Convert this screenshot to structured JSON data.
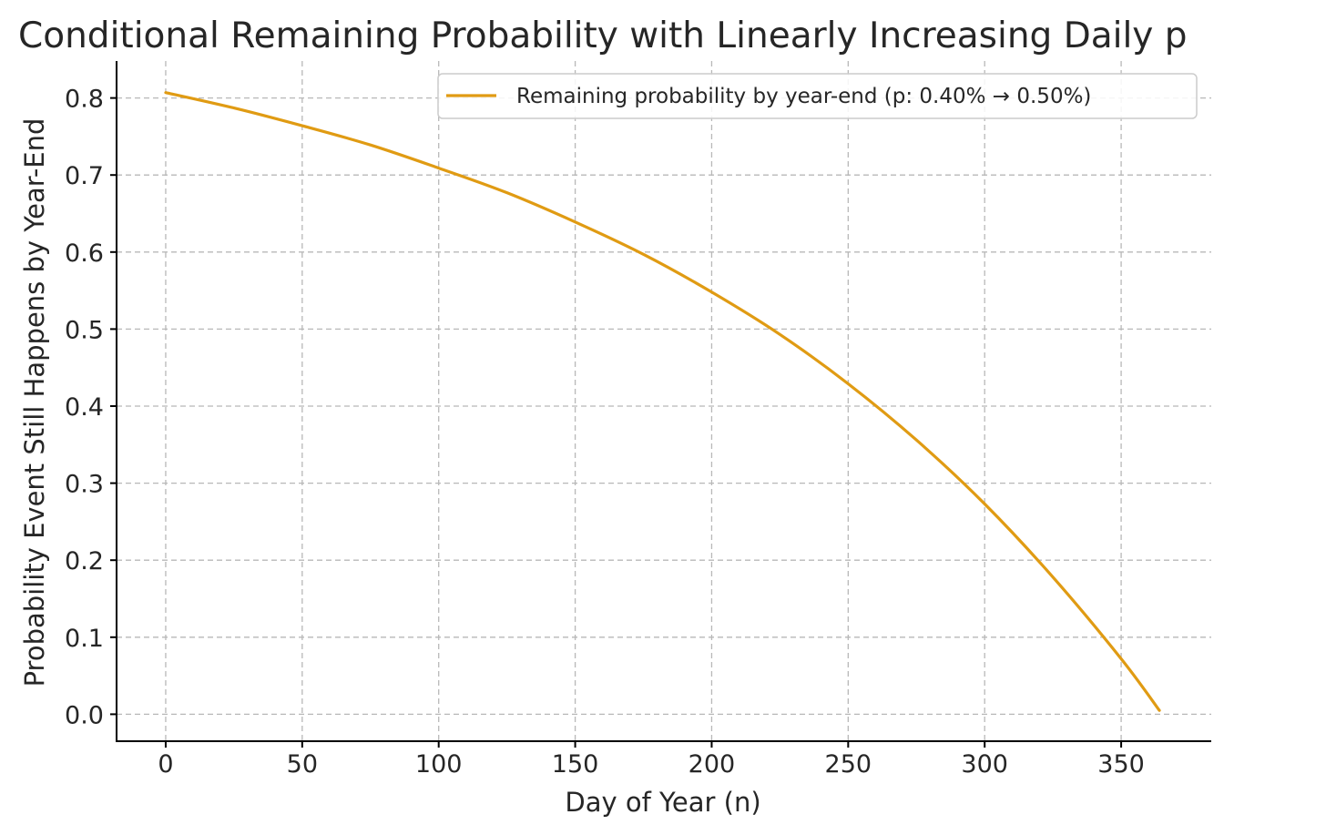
{
  "chart_data": {
    "type": "line",
    "title": "Conditional Remaining Probability with Linearly Increasing Daily p",
    "xlabel": "Day of Year (n)",
    "ylabel": "Probability Event Still Happens by Year-End",
    "xlim": [
      -18,
      383
    ],
    "ylim": [
      -0.035,
      0.848
    ],
    "xticks": [
      0,
      50,
      100,
      150,
      200,
      250,
      300,
      350
    ],
    "yticks": [
      0.0,
      0.1,
      0.2,
      0.3,
      0.4,
      0.5,
      0.6,
      0.7,
      0.8
    ],
    "xtick_labels": [
      "0",
      "50",
      "100",
      "150",
      "200",
      "250",
      "300",
      "350"
    ],
    "ytick_labels": [
      "0.0",
      "0.1",
      "0.2",
      "0.3",
      "0.4",
      "0.5",
      "0.6",
      "0.7",
      "0.8"
    ],
    "grid": true,
    "legend_position": "top-right",
    "series": [
      {
        "name": "Remaining probability by year-end (p: 0.40% → 0.50%)",
        "color": "#e09b13",
        "x": [
          0,
          25,
          50,
          75,
          100,
          125,
          150,
          175,
          200,
          225,
          250,
          275,
          300,
          325,
          350,
          364
        ],
        "y": [
          0.807,
          0.787,
          0.764,
          0.739,
          0.709,
          0.677,
          0.639,
          0.597,
          0.548,
          0.493,
          0.429,
          0.356,
          0.273,
          0.178,
          0.072,
          0.005
        ]
      }
    ]
  }
}
